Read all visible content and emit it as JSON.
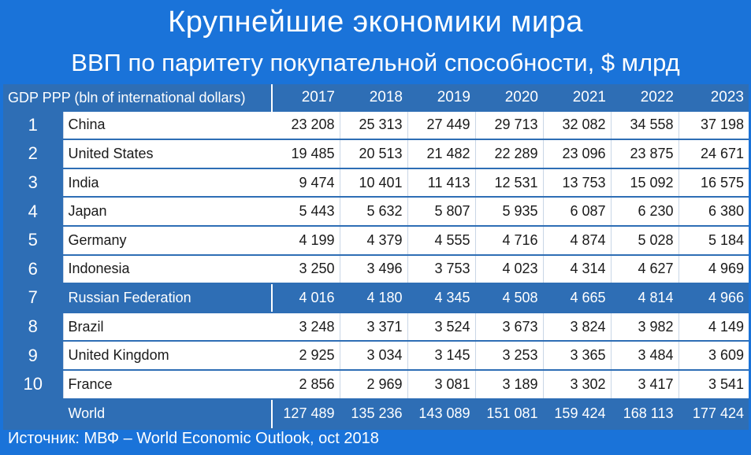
{
  "header": {
    "title": "Крупнейшие экономики мира",
    "subtitle": "ВВП по паритету покупательной способности, $ млрд"
  },
  "footer": {
    "source": "Источник: МВФ – World Economic Outlook, oct 2018"
  },
  "colors": {
    "background": "#1a73d9",
    "header_cell": "#2e6eb5",
    "highlight_row": "#2e6eb5",
    "data_cell": "#ffffff"
  },
  "chart_data": {
    "type": "table",
    "header_label": "GDP PPP (bln of international dollars)",
    "years": [
      "2017",
      "2018",
      "2019",
      "2020",
      "2021",
      "2022",
      "2023"
    ],
    "rows": [
      {
        "rank": "1",
        "country": "China",
        "values": [
          "23 208",
          "25 313",
          "27 449",
          "29 713",
          "32 082",
          "34 558",
          "37 198"
        ]
      },
      {
        "rank": "2",
        "country": "United States",
        "values": [
          "19 485",
          "20 513",
          "21 482",
          "22 289",
          "23 096",
          "23 875",
          "24 671"
        ]
      },
      {
        "rank": "3",
        "country": "India",
        "values": [
          "9 474",
          "10 401",
          "11 413",
          "12 531",
          "13 753",
          "15 092",
          "16 575"
        ]
      },
      {
        "rank": "4",
        "country": "Japan",
        "values": [
          "5 443",
          "5 632",
          "5 807",
          "5 935",
          "6 087",
          "6 230",
          "6 380"
        ]
      },
      {
        "rank": "5",
        "country": "Germany",
        "values": [
          "4 199",
          "4 379",
          "4 555",
          "4 716",
          "4 874",
          "5 028",
          "5 184"
        ]
      },
      {
        "rank": "6",
        "country": "Indonesia",
        "values": [
          "3 250",
          "3 496",
          "3 753",
          "4 023",
          "4 314",
          "4 627",
          "4 969"
        ]
      },
      {
        "rank": "7",
        "country": "Russian Federation",
        "values": [
          "4 016",
          "4 180",
          "4 345",
          "4 508",
          "4 665",
          "4 814",
          "4 966"
        ],
        "highlight": true
      },
      {
        "rank": "8",
        "country": "Brazil",
        "values": [
          "3 248",
          "3 371",
          "3 524",
          "3 673",
          "3 824",
          "3 982",
          "4 149"
        ]
      },
      {
        "rank": "9",
        "country": "United Kingdom",
        "values": [
          "2 925",
          "3 034",
          "3 145",
          "3 253",
          "3 365",
          "3 484",
          "3 609"
        ]
      },
      {
        "rank": "10",
        "country": "France",
        "values": [
          "2 856",
          "2 969",
          "3 081",
          "3 189",
          "3 302",
          "3 417",
          "3 541"
        ]
      }
    ],
    "total": {
      "rank": "",
      "country": "World",
      "values": [
        "127 489",
        "135 236",
        "143 089",
        "151 081",
        "159 424",
        "168 113",
        "177 424"
      ]
    }
  }
}
